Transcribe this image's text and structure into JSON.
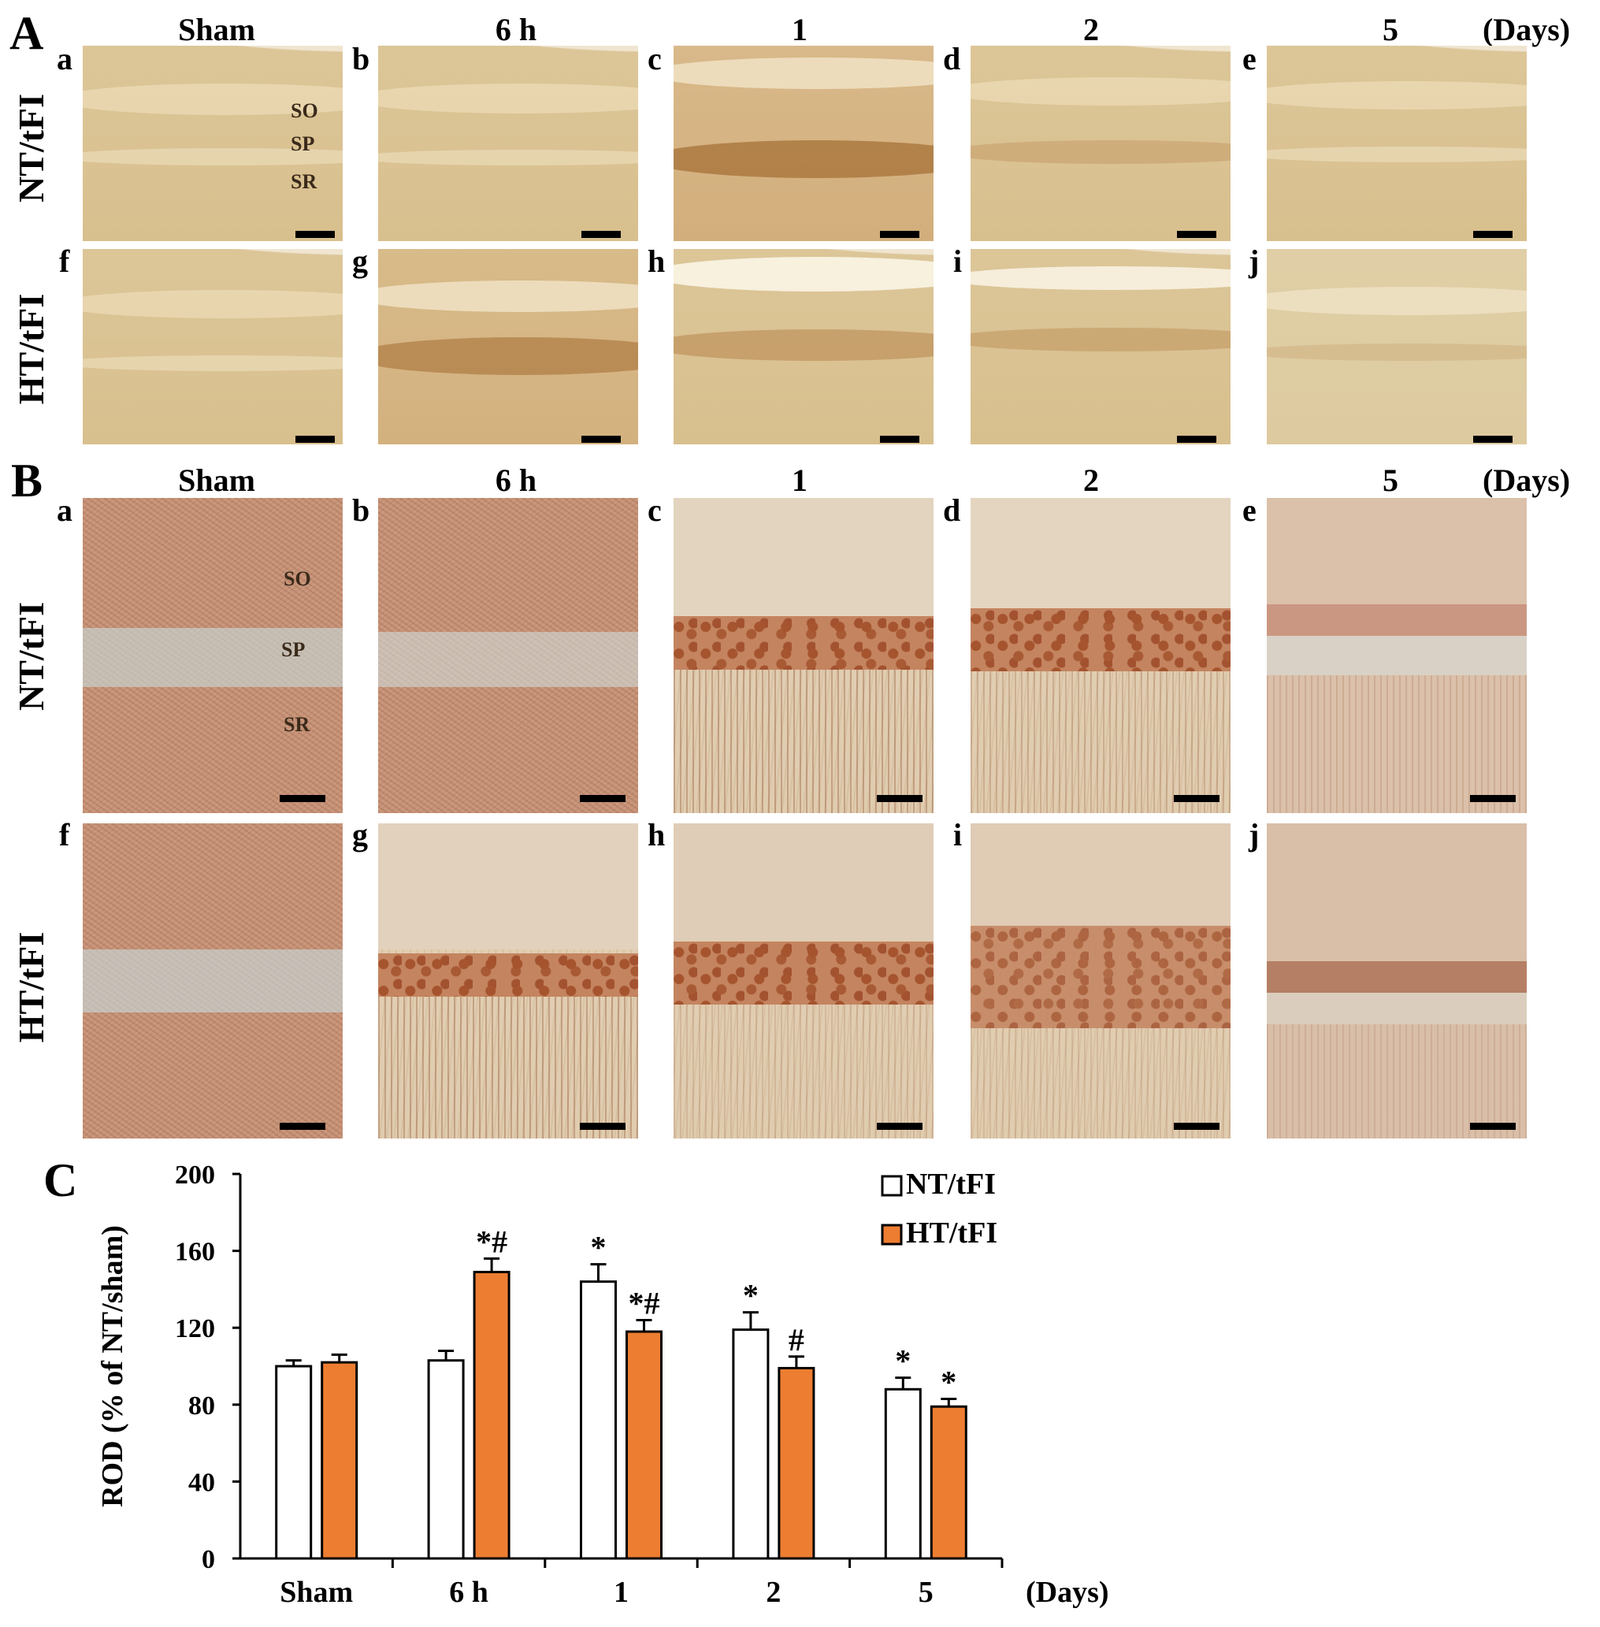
{
  "sections": {
    "A": "A",
    "B": "B",
    "C": "C"
  },
  "column_headers": [
    "Sham",
    "6 h",
    "1",
    "2",
    "5"
  ],
  "unit_label": "(Days)",
  "row_labels": {
    "nt": "NT/tFI",
    "ht": "HT/tFI"
  },
  "panel_letters": {
    "top": [
      "a",
      "b",
      "c",
      "d",
      "e"
    ],
    "bottom": [
      "f",
      "g",
      "h",
      "i",
      "j"
    ]
  },
  "layer_labels": [
    "SO",
    "SP",
    "SR"
  ],
  "chart_data": {
    "type": "bar",
    "categories": [
      "Sham",
      "6 h",
      "1",
      "2",
      "5"
    ],
    "x_unit_label": "(Days)",
    "ylabel": "ROD (% of NT/sham)",
    "xlabel": "",
    "ylim": [
      0,
      200
    ],
    "yticks": [
      0,
      40,
      80,
      120,
      160,
      200
    ],
    "legend_position": "top-right",
    "grid": false,
    "series": [
      {
        "name": "NT/tFI",
        "color": "#ffffff",
        "values": [
          100,
          103,
          144,
          119,
          88
        ],
        "errors": [
          3,
          5,
          9,
          9,
          6
        ],
        "annotations": [
          "",
          "",
          "*",
          "*",
          "*"
        ]
      },
      {
        "name": "HT/tFI",
        "color": "#ed7d31",
        "values": [
          102,
          149,
          118,
          99,
          79
        ],
        "errors": [
          4,
          7,
          6,
          6,
          4
        ],
        "annotations": [
          "",
          "*#",
          "*#",
          "#",
          "*"
        ]
      }
    ]
  }
}
